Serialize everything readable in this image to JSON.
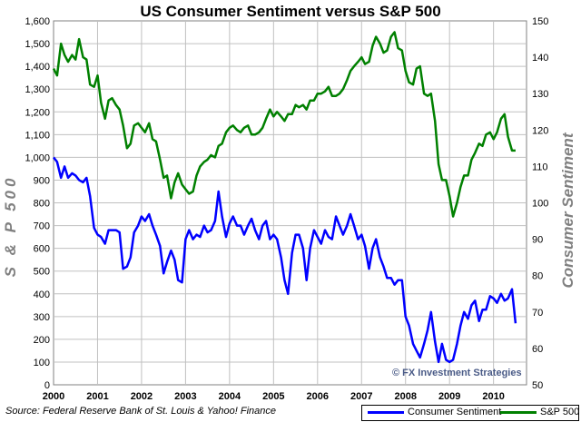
{
  "chart_data": {
    "type": "line",
    "title": "US Consumer Sentiment versus S&P 500",
    "ylabel_left": "S & P 500",
    "ylabel_right": "Consumer Sentiment",
    "source": "Source: Federal Reserve Bank of St. Louis & Yahoo! Finance",
    "watermark": "© FX Investment Strategies",
    "x_range": [
      2000.0,
      2010.75
    ],
    "x_ticks": [
      "2000",
      "2001",
      "2002",
      "2003",
      "2004",
      "2005",
      "2006",
      "2007",
      "2008",
      "2009",
      "2010"
    ],
    "ylim_left": [
      0,
      1600
    ],
    "ylim_right": [
      50,
      150
    ],
    "yticks_left": [
      "0",
      "100",
      "200",
      "300",
      "400",
      "500",
      "600",
      "700",
      "800",
      "900",
      "1,000",
      "1,100",
      "1,200",
      "1,300",
      "1,400",
      "1,500",
      "1,600"
    ],
    "yticks_right": [
      "50",
      "60",
      "70",
      "80",
      "90",
      "100",
      "110",
      "120",
      "130",
      "140",
      "150"
    ],
    "grid": true,
    "legend_position": "bottom-right",
    "series": [
      {
        "name": "Consumer Sentiment",
        "color": "#0000ff",
        "axis": "left",
        "x": [
          2000.0,
          2000.08,
          2000.17,
          2000.25,
          2000.33,
          2000.42,
          2000.5,
          2000.58,
          2000.67,
          2000.75,
          2000.83,
          2000.92,
          2001.0,
          2001.08,
          2001.17,
          2001.25,
          2001.33,
          2001.42,
          2001.5,
          2001.58,
          2001.67,
          2001.75,
          2001.83,
          2001.92,
          2002.0,
          2002.08,
          2002.17,
          2002.25,
          2002.33,
          2002.42,
          2002.5,
          2002.58,
          2002.67,
          2002.75,
          2002.83,
          2002.92,
          2003.0,
          2003.08,
          2003.17,
          2003.25,
          2003.33,
          2003.42,
          2003.5,
          2003.58,
          2003.67,
          2003.75,
          2003.83,
          2003.92,
          2004.0,
          2004.08,
          2004.17,
          2004.25,
          2004.33,
          2004.42,
          2004.5,
          2004.58,
          2004.67,
          2004.75,
          2004.83,
          2004.92,
          2005.0,
          2005.08,
          2005.17,
          2005.25,
          2005.33,
          2005.42,
          2005.5,
          2005.58,
          2005.67,
          2005.75,
          2005.83,
          2005.92,
          2006.0,
          2006.08,
          2006.17,
          2006.25,
          2006.33,
          2006.42,
          2006.5,
          2006.58,
          2006.67,
          2006.75,
          2006.83,
          2006.92,
          2007.0,
          2007.08,
          2007.17,
          2007.25,
          2007.33,
          2007.42,
          2007.5,
          2007.58,
          2007.67,
          2007.75,
          2007.83,
          2007.92,
          2008.0,
          2008.08,
          2008.17,
          2008.25,
          2008.33,
          2008.42,
          2008.5,
          2008.58,
          2008.67,
          2008.75,
          2008.83,
          2008.92,
          2009.0,
          2009.08,
          2009.17,
          2009.25,
          2009.33,
          2009.42,
          2009.5,
          2009.58,
          2009.67,
          2009.75,
          2009.83,
          2009.92,
          2010.0,
          2010.08,
          2010.17,
          2010.25,
          2010.33,
          2010.42,
          2010.5
        ],
        "values": [
          1000,
          980,
          910,
          960,
          910,
          930,
          920,
          900,
          890,
          910,
          830,
          690,
          660,
          650,
          620,
          680,
          680,
          680,
          670,
          510,
          520,
          560,
          670,
          700,
          740,
          720,
          750,
          700,
          660,
          610,
          490,
          540,
          590,
          550,
          460,
          450,
          640,
          680,
          640,
          660,
          650,
          700,
          670,
          680,
          720,
          850,
          740,
          650,
          710,
          740,
          700,
          700,
          660,
          700,
          730,
          680,
          640,
          700,
          720,
          640,
          660,
          640,
          560,
          460,
          400,
          580,
          660,
          660,
          600,
          460,
          600,
          680,
          650,
          620,
          680,
          650,
          640,
          740,
          700,
          660,
          700,
          750,
          700,
          640,
          660,
          610,
          510,
          600,
          640,
          560,
          520,
          470,
          470,
          440,
          460,
          460,
          300,
          260,
          180,
          150,
          120,
          180,
          240,
          320,
          190,
          100,
          180,
          110,
          100,
          110,
          180,
          260,
          320,
          290,
          350,
          370,
          280,
          330,
          330,
          390,
          380,
          360,
          400,
          370,
          380,
          420,
          270
        ]
      },
      {
        "name": "S&P 500",
        "color": "#008000",
        "axis": "right",
        "x": [
          2000.0,
          2000.08,
          2000.17,
          2000.25,
          2000.33,
          2000.42,
          2000.5,
          2000.58,
          2000.67,
          2000.75,
          2000.83,
          2000.92,
          2001.0,
          2001.08,
          2001.17,
          2001.25,
          2001.33,
          2001.42,
          2001.5,
          2001.58,
          2001.67,
          2001.75,
          2001.83,
          2001.92,
          2002.0,
          2002.08,
          2002.17,
          2002.25,
          2002.33,
          2002.42,
          2002.5,
          2002.58,
          2002.67,
          2002.75,
          2002.83,
          2002.92,
          2003.0,
          2003.08,
          2003.17,
          2003.25,
          2003.33,
          2003.42,
          2003.5,
          2003.58,
          2003.67,
          2003.75,
          2003.83,
          2003.92,
          2004.0,
          2004.08,
          2004.17,
          2004.25,
          2004.33,
          2004.42,
          2004.5,
          2004.58,
          2004.67,
          2004.75,
          2004.83,
          2004.92,
          2005.0,
          2005.08,
          2005.17,
          2005.25,
          2005.33,
          2005.42,
          2005.5,
          2005.58,
          2005.67,
          2005.75,
          2005.83,
          2005.92,
          2006.0,
          2006.08,
          2006.17,
          2006.25,
          2006.33,
          2006.42,
          2006.5,
          2006.58,
          2006.67,
          2006.75,
          2006.83,
          2006.92,
          2007.0,
          2007.08,
          2007.17,
          2007.25,
          2007.33,
          2007.42,
          2007.5,
          2007.58,
          2007.67,
          2007.75,
          2007.83,
          2007.92,
          2008.0,
          2008.08,
          2008.17,
          2008.25,
          2008.33,
          2008.42,
          2008.5,
          2008.58,
          2008.67,
          2008.75,
          2008.83,
          2008.92,
          2009.0,
          2009.08,
          2009.17,
          2009.25,
          2009.33,
          2009.42,
          2009.5,
          2009.58,
          2009.67,
          2009.75,
          2009.83,
          2009.92,
          2010.0,
          2010.08,
          2010.17,
          2010.25,
          2010.33,
          2010.42,
          2010.5
        ],
        "values": [
          1390,
          1360,
          1500,
          1450,
          1420,
          1450,
          1430,
          1520,
          1440,
          1430,
          1320,
          1310,
          1360,
          1240,
          1170,
          1250,
          1260,
          1230,
          1210,
          1140,
          1040,
          1060,
          1140,
          1150,
          1130,
          1110,
          1150,
          1080,
          1070,
          990,
          910,
          920,
          820,
          890,
          930,
          880,
          860,
          840,
          850,
          920,
          960,
          980,
          990,
          1010,
          1000,
          1050,
          1060,
          1110,
          1130,
          1140,
          1120,
          1110,
          1130,
          1140,
          1100,
          1100,
          1110,
          1130,
          1170,
          1210,
          1180,
          1200,
          1180,
          1160,
          1190,
          1190,
          1230,
          1220,
          1230,
          1210,
          1250,
          1250,
          1280,
          1280,
          1290,
          1310,
          1270,
          1270,
          1280,
          1300,
          1340,
          1380,
          1400,
          1420,
          1440,
          1410,
          1420,
          1490,
          1530,
          1500,
          1460,
          1470,
          1530,
          1550,
          1480,
          1470,
          1380,
          1330,
          1320,
          1390,
          1400,
          1280,
          1270,
          1280,
          1160,
          970,
          900,
          900,
          830,
          740,
          800,
          870,
          920,
          920,
          990,
          1020,
          1060,
          1050,
          1100,
          1110,
          1080,
          1110,
          1170,
          1190,
          1090,
          1030,
          1030
        ]
      }
    ]
  }
}
